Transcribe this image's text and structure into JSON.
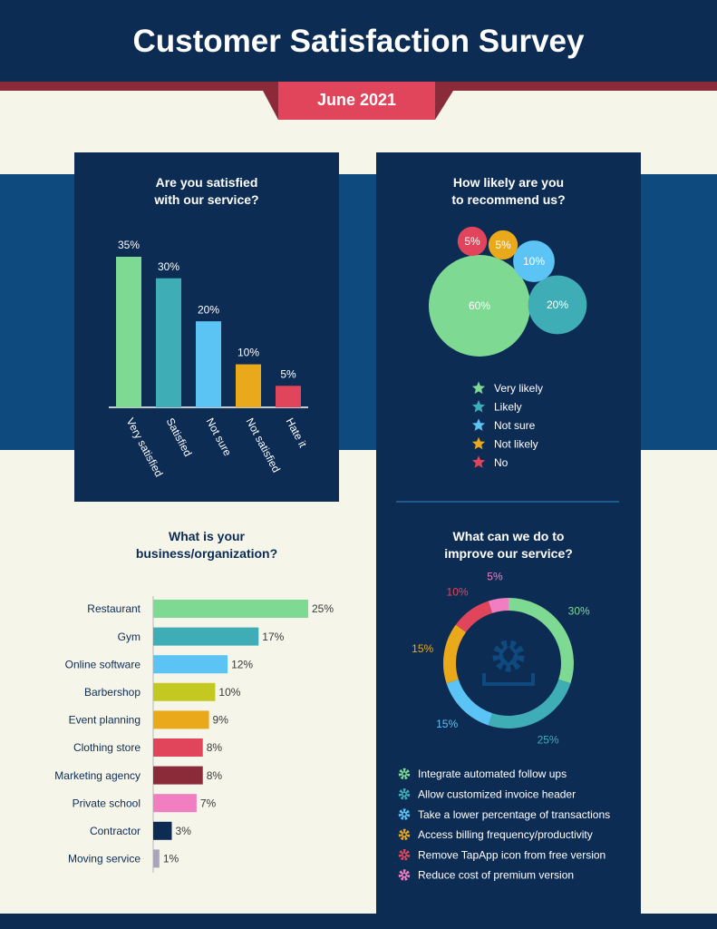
{
  "title": "Customer Satisfaction Survey",
  "subtitle": "June 2021",
  "chart_data": [
    {
      "type": "bar",
      "title": "Are you satisfied\nwith our service?",
      "categories": [
        "Very satisfied",
        "Satisfied",
        "Not sure",
        "Not satisfied",
        "Hate it"
      ],
      "values": [
        35,
        30,
        20,
        10,
        5
      ],
      "value_labels": [
        "35%",
        "30%",
        "20%",
        "10%",
        "5%"
      ],
      "colors": [
        "#7ed993",
        "#3fadb5",
        "#5bc4f5",
        "#e9a91b",
        "#e0455c"
      ]
    },
    {
      "type": "bubble",
      "title": "How likely are you\nto recommend us?",
      "categories": [
        "Very likely",
        "Likely",
        "Not sure",
        "Not likely",
        "No"
      ],
      "values": [
        60,
        20,
        10,
        5,
        5
      ],
      "value_labels": [
        "60%",
        "20%",
        "10%",
        "5%",
        "5%"
      ],
      "colors": [
        "#7ed993",
        "#3fadb5",
        "#5bc4f5",
        "#e9a91b",
        "#e0455c"
      ]
    },
    {
      "type": "hbar",
      "title": "What is your\nbusiness/organization?",
      "categories": [
        "Restaurant",
        "Gym",
        "Online software",
        "Barbershop",
        "Event planning",
        "Clothing store",
        "Marketing agency",
        "Private school",
        "Contractor",
        "Moving service"
      ],
      "values": [
        25,
        17,
        12,
        10,
        9,
        8,
        8,
        7,
        3,
        1
      ],
      "value_labels": [
        "25%",
        "17%",
        "12%",
        "10%",
        "9%",
        "8%",
        "8%",
        "7%",
        "3%",
        "1%"
      ],
      "colors": [
        "#7ed993",
        "#3fadb5",
        "#5bc4f5",
        "#c4c921",
        "#e9a91b",
        "#e0455c",
        "#8b2b3a",
        "#f07ec0",
        "#0d2c54",
        "#a9a5bf"
      ]
    },
    {
      "type": "donut",
      "title": "What can we do to\nimprove our service?",
      "categories": [
        "Integrate automated follow ups",
        "Allow customized invoice header",
        "Take a lower percentage of transactions",
        "Access billing frequency/productivity",
        "Remove TapApp icon from free version",
        "Reduce cost of premium version"
      ],
      "values": [
        30,
        25,
        15,
        15,
        10,
        5
      ],
      "value_labels": [
        "30%",
        "25%",
        "15%",
        "15%",
        "10%",
        "5%"
      ],
      "colors": [
        "#7ed993",
        "#3fadb5",
        "#5bc4f5",
        "#e9a91b",
        "#e0455c",
        "#f07ec0"
      ]
    }
  ]
}
